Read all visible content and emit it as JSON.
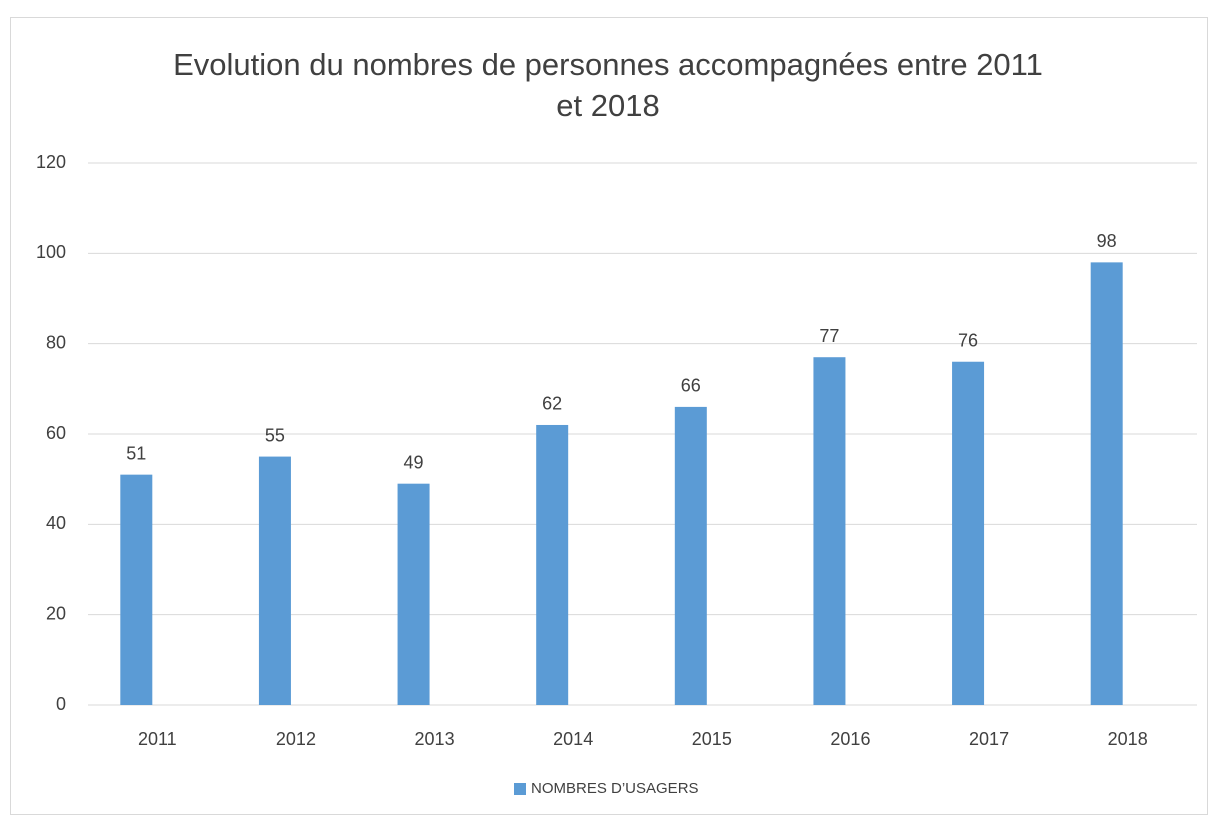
{
  "chart_data": {
    "type": "bar",
    "title": "Evolution du nombres de personnes accompagnées entre 2011 et 2018",
    "categories": [
      "2011",
      "2012",
      "2013",
      "2014",
      "2015",
      "2016",
      "2017",
      "2018"
    ],
    "series": [
      {
        "name": "NOMBRES D’USAGERS",
        "color": "#5b9bd5",
        "values": [
          51,
          55,
          49,
          62,
          66,
          77,
          76,
          98
        ]
      }
    ],
    "ylim": [
      0,
      120
    ],
    "yticks": [
      0,
      20,
      40,
      60,
      80,
      100,
      120
    ],
    "grid": true,
    "legend": "bottom"
  }
}
